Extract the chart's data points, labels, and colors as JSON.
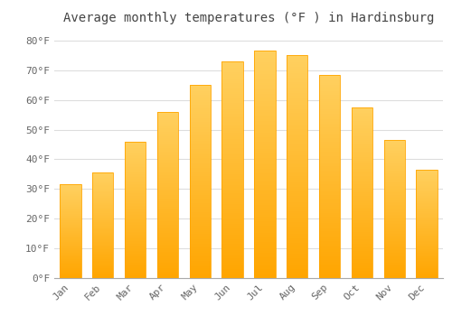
{
  "title": "Average monthly temperatures (°F ) in Hardinsburg",
  "months": [
    "Jan",
    "Feb",
    "Mar",
    "Apr",
    "May",
    "Jun",
    "Jul",
    "Aug",
    "Sep",
    "Oct",
    "Nov",
    "Dec"
  ],
  "values": [
    31.5,
    35.5,
    46.0,
    56.0,
    65.0,
    73.0,
    76.5,
    75.0,
    68.5,
    57.5,
    46.5,
    36.5
  ],
  "bar_color_top": "#FFD060",
  "bar_color_bottom": "#FFA500",
  "background_color": "#FFFFFF",
  "grid_color": "#DDDDDD",
  "ylim": [
    0,
    83
  ],
  "yticks": [
    0,
    10,
    20,
    30,
    40,
    50,
    60,
    70,
    80
  ],
  "title_fontsize": 10,
  "tick_fontsize": 8,
  "tick_color": "#666666",
  "title_color": "#444444",
  "font_family": "monospace"
}
